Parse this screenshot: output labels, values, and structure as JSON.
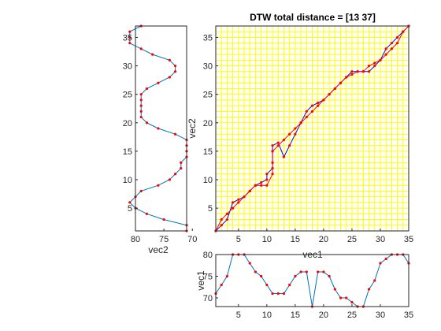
{
  "chart_data": [
    {
      "id": "dtw-matrix",
      "type": "line",
      "title": "DTW total distance = [13 37]",
      "xlabel": "vec1",
      "ylabel": "vec2",
      "xlim": [
        1,
        35
      ],
      "ylim": [
        1,
        37
      ],
      "xticks": [
        5,
        10,
        15,
        20,
        25,
        30,
        35
      ],
      "yticks": [
        5,
        10,
        15,
        20,
        25,
        30,
        35
      ],
      "grid": true,
      "grid_color": "#ffff00",
      "background": "#ffffff",
      "series": [
        {
          "color": "#0000ff",
          "marker_color": "#ff0000",
          "x": [
            1,
            2,
            3,
            4,
            5,
            6,
            7,
            8,
            9,
            10,
            10,
            11,
            11,
            11,
            11,
            12,
            13,
            14,
            15,
            16,
            17,
            18,
            19,
            20,
            21,
            22,
            23,
            24,
            25,
            26,
            27,
            28,
            29,
            30,
            31,
            32,
            33,
            34,
            35
          ],
          "y": [
            1,
            2,
            3,
            6,
            6.5,
            7,
            8,
            9,
            9.5,
            10,
            11,
            12,
            13,
            15,
            16,
            16.5,
            14,
            16,
            18,
            20,
            22,
            23,
            23.5,
            24,
            25,
            26,
            27,
            28,
            29,
            29,
            29,
            29,
            30,
            31,
            33,
            34,
            35,
            36,
            37
          ]
        },
        {
          "color": "#ff0000",
          "marker_color": "#ff0000",
          "x": [
            1,
            2,
            3,
            4,
            5,
            6,
            7,
            8,
            9,
            10,
            11,
            11,
            12,
            13,
            14,
            15,
            16,
            17,
            18,
            19,
            20,
            21,
            22,
            23,
            24,
            25,
            26,
            27,
            28,
            29,
            30,
            31,
            32,
            33,
            34,
            35
          ],
          "y": [
            1,
            3,
            4,
            5,
            6,
            7,
            8,
            9,
            9,
            9,
            11,
            15,
            16,
            17,
            18,
            19,
            20,
            21,
            22,
            23,
            24,
            25,
            26,
            27,
            28,
            28.5,
            29,
            29,
            30,
            30.5,
            31,
            32,
            33,
            34,
            36,
            37
          ]
        }
      ]
    },
    {
      "id": "vec2-plot",
      "type": "line",
      "orientation": "vertical",
      "xlabel": "vec2",
      "xlim": [
        80,
        71
      ],
      "ylim": [
        1,
        37
      ],
      "xticks": [
        80,
        75,
        70
      ],
      "yticks": [
        5,
        10,
        15,
        20,
        25,
        30,
        35
      ],
      "line_color": "#0072bd",
      "marker_color": "#ff0000",
      "index": [
        1,
        2,
        3,
        4,
        5,
        6,
        7,
        8,
        9,
        10,
        11,
        12,
        13,
        14,
        15,
        16,
        17,
        18,
        19,
        20,
        21,
        22,
        23,
        24,
        25,
        26,
        27,
        28,
        29,
        30,
        31,
        32,
        33,
        34,
        35,
        36,
        37
      ],
      "values": [
        71,
        71,
        75,
        78,
        80,
        81,
        80,
        79,
        76,
        74,
        73,
        72,
        72,
        71,
        71,
        71,
        71,
        73,
        76,
        78,
        79,
        79,
        79,
        79,
        79,
        78,
        76,
        74,
        73,
        73,
        74,
        77,
        79,
        81,
        81,
        81,
        79
      ]
    },
    {
      "id": "vec1-plot",
      "type": "line",
      "ylabel": "vec1",
      "xlim": [
        1,
        35
      ],
      "ylim": [
        68,
        80
      ],
      "xticks": [
        5,
        10,
        15,
        20,
        25,
        30,
        35
      ],
      "yticks": [
        70,
        75,
        80
      ],
      "line_color": "#0072bd",
      "marker_color": "#ff0000",
      "index": [
        1,
        2,
        3,
        4,
        5,
        6,
        7,
        8,
        9,
        10,
        11,
        12,
        13,
        14,
        15,
        16,
        17,
        18,
        19,
        20,
        21,
        22,
        23,
        24,
        25,
        26,
        27,
        28,
        29,
        30,
        31,
        32,
        33,
        34,
        35
      ],
      "values": [
        71,
        73,
        75,
        80,
        80,
        80,
        78,
        76,
        75,
        73,
        71,
        71,
        71,
        73,
        75,
        76,
        76,
        68,
        76,
        76,
        75,
        72,
        70,
        70,
        69,
        68,
        68,
        72,
        74,
        78,
        79,
        80,
        80,
        80,
        78
      ]
    }
  ]
}
